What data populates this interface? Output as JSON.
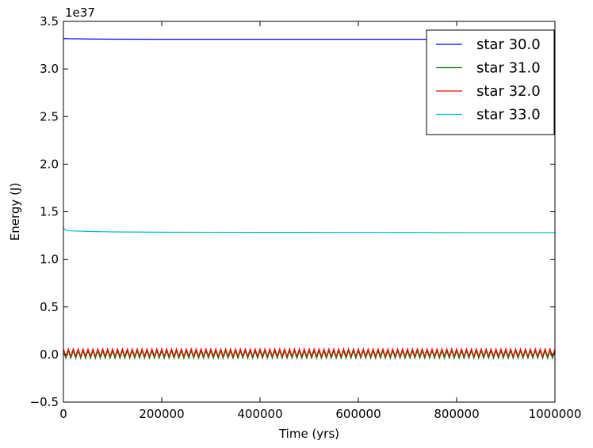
{
  "chart_data": {
    "type": "line",
    "xlabel": "Time (yrs)",
    "ylabel": "Energy (J)",
    "y_offset_label": "1e37",
    "y_multiplier": 1e+37,
    "xlim": [
      0,
      1000000
    ],
    "ylim": [
      -0.5,
      3.5
    ],
    "xticks": [
      0,
      200000,
      400000,
      600000,
      800000,
      1000000
    ],
    "xtick_labels": [
      "0",
      "200000",
      "400000",
      "600000",
      "800000",
      "1000000"
    ],
    "yticks": [
      -0.5,
      0.0,
      0.5,
      1.0,
      1.5,
      2.0,
      2.5,
      3.0,
      3.5
    ],
    "ytick_labels": [
      "−0.5",
      "0.0",
      "0.5",
      "1.0",
      "1.5",
      "2.0",
      "2.5",
      "3.0",
      "3.5"
    ],
    "grid": false,
    "legend_position": "top-right",
    "series": [
      {
        "name": "star 30.0",
        "color": "#0000ff",
        "style": "smooth",
        "x": [
          0,
          10000,
          50000,
          100000,
          200000,
          400000,
          600000,
          800000,
          1000000
        ],
        "y": [
          3.32,
          3.318,
          3.315,
          3.313,
          3.312,
          3.312,
          3.312,
          3.312,
          3.312
        ]
      },
      {
        "name": "star 31.0",
        "color": "#008000",
        "style": "oscillating",
        "baseline": 0.0,
        "amplitude": 0.04,
        "cycles": 100
      },
      {
        "name": "star 32.0",
        "color": "#ff0000",
        "style": "oscillating",
        "baseline": 0.02,
        "amplitude": 0.04,
        "cycles": 100
      },
      {
        "name": "star 33.0",
        "color": "#00bfbf",
        "style": "smooth",
        "x": [
          0,
          5000,
          10000,
          50000,
          100000,
          200000,
          400000,
          600000,
          800000,
          1000000
        ],
        "y": [
          1.33,
          1.305,
          1.3,
          1.293,
          1.288,
          1.285,
          1.283,
          1.282,
          1.281,
          1.281
        ]
      }
    ]
  }
}
